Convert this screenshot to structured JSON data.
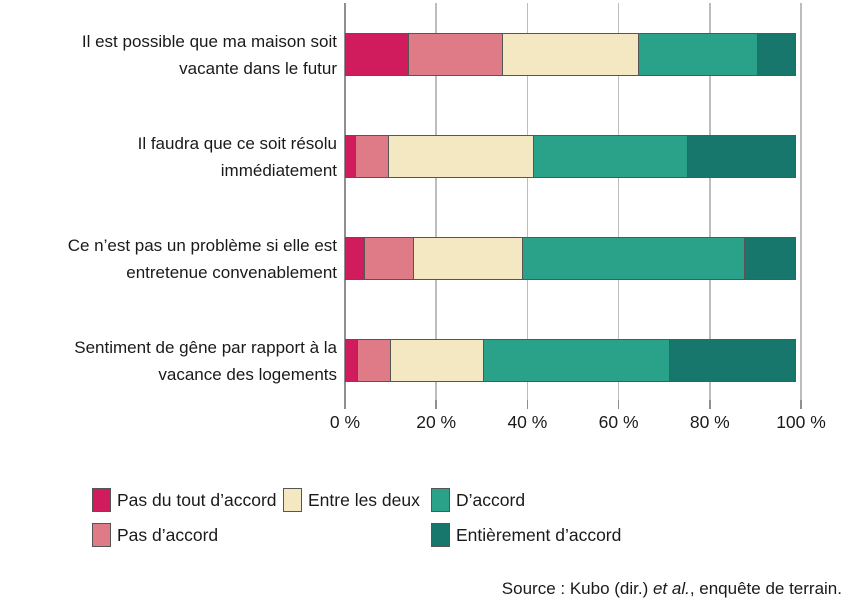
{
  "chart_data": {
    "type": "bar",
    "subtype": "horizontal-stacked-100",
    "title": "",
    "categories": [
      [
        "Il est possible que ma maison soit",
        "vacante dans le futur"
      ],
      [
        "Il faudra que ce soit résolu",
        "immédiatement"
      ],
      [
        "Ce n’est pas un problème si elle est",
        "entretenue convenablement"
      ],
      [
        "Sentiment de gêne par rapport à la",
        "vacance des logements"
      ]
    ],
    "series": [
      {
        "name": "Pas du tout d’accord",
        "color": "#d01b5d",
        "values": [
          14,
          2.5,
          4.5,
          3
        ]
      },
      {
        "name": "Pas d’accord",
        "color": "#df7a87",
        "values": [
          21,
          7.5,
          11,
          7.5
        ]
      },
      {
        "name": "Entre les deux",
        "color": "#f4e8c3",
        "values": [
          30,
          32,
          24,
          20.5
        ]
      },
      {
        "name": "D’accord",
        "color": "#2aa28a",
        "values": [
          26.5,
          34,
          49,
          41
        ]
      },
      {
        "name": "Entièrement d’accord",
        "color": "#17776d",
        "values": [
          8.5,
          24,
          11.5,
          28
        ]
      }
    ],
    "x_axis": {
      "tick_values": [
        0,
        20,
        40,
        60,
        80,
        100
      ],
      "tick_labels": [
        "0 %",
        "20 %",
        "40 %",
        "60 %",
        "80 %",
        "100 %"
      ],
      "xlim": [
        0,
        100
      ]
    },
    "grid": "vertical-only",
    "legend_position": "bottom",
    "legend_columns": [
      [
        0,
        1
      ],
      [
        2
      ],
      [
        3,
        4
      ]
    ],
    "colors": {
      "grid": "#bdbdbd",
      "axis": "#8f8f8f",
      "segment_border": "#555555",
      "text": "#1a1a1a",
      "background": "#ffffff"
    }
  },
  "source": {
    "prefix": "Source : Kubo (dir.) ",
    "italic": "et al.",
    "suffix": ", enquête de terrain."
  }
}
